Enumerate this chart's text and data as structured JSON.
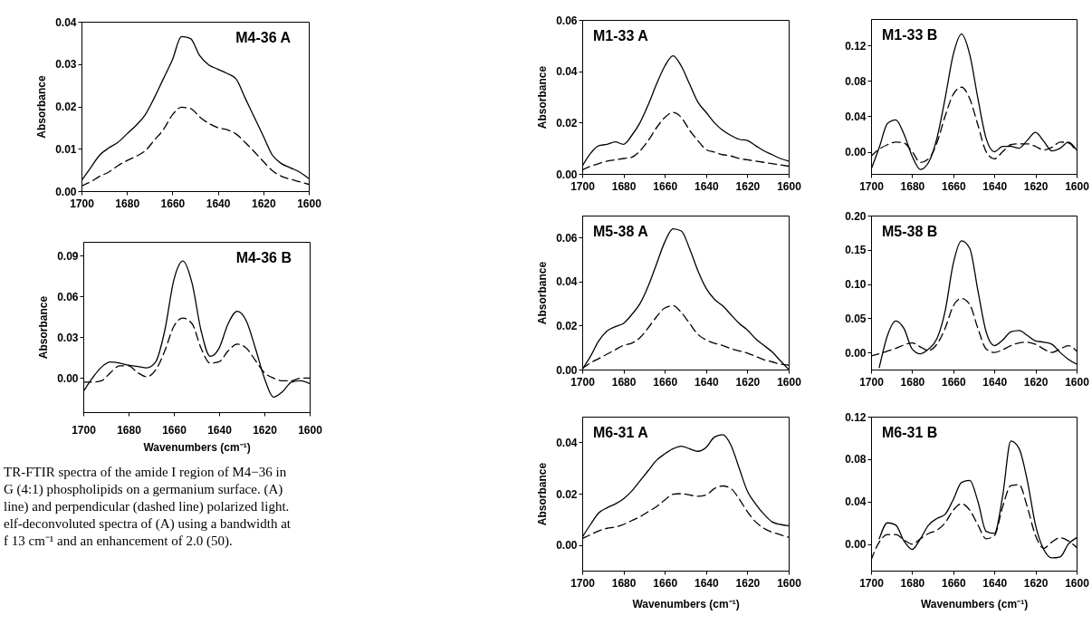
{
  "chart_data": [
    {
      "type": "line",
      "title": "M4-36 A",
      "ylabel": "Absorbance",
      "xlim": [
        1700,
        1600
      ],
      "xticks": [
        1700,
        1680,
        1660,
        1640,
        1620,
        1600
      ],
      "ylim": [
        0,
        0.04
      ],
      "yticks": [
        {
          "value": 0,
          "label": "0.00"
        },
        0.01,
        0.02,
        0.03,
        0.04
      ],
      "grid": false,
      "x": [
        1700,
        1696,
        1692,
        1688,
        1684,
        1680,
        1676,
        1672,
        1668,
        1664,
        1660,
        1656,
        1652,
        1648,
        1644,
        1640,
        1636,
        1632,
        1628,
        1624,
        1620,
        1616,
        1612,
        1608,
        1604,
        1600
      ],
      "series": [
        {
          "color": "#000000",
          "line_style": "solid",
          "values": [
            0.0025,
            0.0055,
            0.0085,
            0.0102,
            0.0115,
            0.0135,
            0.0155,
            0.018,
            0.022,
            0.0265,
            0.031,
            0.0365,
            0.036,
            0.032,
            0.0298,
            0.0288,
            0.0278,
            0.0265,
            0.022,
            0.0175,
            0.013,
            0.0085,
            0.0065,
            0.0055,
            0.0045,
            0.003
          ]
        },
        {
          "color": "#000000",
          "line_style": "dashed",
          "values": [
            0.0012,
            0.0022,
            0.0035,
            0.0045,
            0.006,
            0.0072,
            0.0082,
            0.0095,
            0.012,
            0.0145,
            0.018,
            0.0198,
            0.0195,
            0.0175,
            0.016,
            0.015,
            0.0145,
            0.0135,
            0.0115,
            0.0093,
            0.007,
            0.0048,
            0.0035,
            0.0028,
            0.0022,
            0.0016
          ]
        }
      ]
    },
    {
      "type": "line",
      "title": "M4-36 B",
      "ylabel": "Absorbance",
      "xlabel": "Wavenumbers (cm⁻¹)",
      "xlim": [
        1700,
        1600
      ],
      "xticks": [
        1700,
        1680,
        1660,
        1640,
        1620,
        1600
      ],
      "ylim": [
        -0.025,
        0.1
      ],
      "yticks": [
        {
          "value": 0,
          "label": "0.00"
        },
        0.03,
        0.06,
        0.09
      ],
      "grid": false,
      "annotations": [
        "TR-FTIR spectra of the amide I region of M4−36 in",
        "G (4:1) phospholipids on a germanium surface. (A)",
        "line) and perpendicular (dashed line) polarized light.",
        "elf-deconvoluted spectra of (A) using a bandwidth at",
        "f 13 cm⁻¹ and an enhancement of 2.0 (50)."
      ],
      "x": [
        1700,
        1696,
        1692,
        1688,
        1684,
        1680,
        1676,
        1672,
        1668,
        1664,
        1660,
        1656,
        1652,
        1648,
        1644,
        1640,
        1636,
        1632,
        1628,
        1624,
        1620,
        1616,
        1612,
        1608,
        1604,
        1600
      ],
      "series": [
        {
          "color": "#000000",
          "line_style": "solid",
          "values": [
            -0.01,
            0,
            0.008,
            0.0118,
            0.011,
            0.0095,
            0.0085,
            0.0075,
            0.012,
            0.035,
            0.072,
            0.086,
            0.07,
            0.035,
            0.016,
            0.022,
            0.04,
            0.049,
            0.042,
            0.022,
            0,
            -0.014,
            -0.01,
            -0.003,
            -0.002,
            -0.004
          ]
        },
        {
          "color": "#000000",
          "line_style": "dashed",
          "values": [
            -0.003,
            -0.003,
            -0.002,
            0.004,
            0.009,
            0.009,
            0.004,
            0.001,
            0.006,
            0.02,
            0.038,
            0.044,
            0.04,
            0.022,
            0.011,
            0.012,
            0.02,
            0.025,
            0.022,
            0.013,
            0.004,
            0,
            -0.002,
            -0.002,
            0,
            0
          ]
        }
      ]
    },
    {
      "type": "line",
      "title": "M1-33 A",
      "ylabel": "Absorbance",
      "xlim": [
        1700,
        1600
      ],
      "xticks": [
        1700,
        1680,
        1660,
        1640,
        1620,
        1600
      ],
      "ylim": [
        0,
        0.06
      ],
      "yticks": [
        {
          "value": 0,
          "label": "0.00"
        },
        0.02,
        0.04,
        0.06
      ],
      "grid": false,
      "x": [
        1700,
        1696,
        1692,
        1688,
        1684,
        1680,
        1676,
        1672,
        1668,
        1664,
        1660,
        1656,
        1652,
        1648,
        1644,
        1640,
        1636,
        1632,
        1628,
        1624,
        1620,
        1616,
        1612,
        1608,
        1604,
        1600
      ],
      "series": [
        {
          "color": "#000000",
          "line_style": "solid",
          "values": [
            0.003,
            0.008,
            0.011,
            0.0115,
            0.0125,
            0.0115,
            0.015,
            0.02,
            0.027,
            0.035,
            0.042,
            0.046,
            0.042,
            0.035,
            0.028,
            0.024,
            0.02,
            0.017,
            0.015,
            0.0135,
            0.013,
            0.011,
            0.009,
            0.0075,
            0.006,
            0.005
          ]
        },
        {
          "color": "#000000",
          "line_style": "dashed",
          "values": [
            0.0015,
            0.003,
            0.004,
            0.005,
            0.0055,
            0.006,
            0.0065,
            0.009,
            0.013,
            0.018,
            0.022,
            0.024,
            0.022,
            0.017,
            0.013,
            0.0095,
            0.0085,
            0.0075,
            0.007,
            0.006,
            0.0055,
            0.005,
            0.0045,
            0.004,
            0.0035,
            0.003
          ]
        }
      ]
    },
    {
      "type": "line",
      "title": "M5-38 A",
      "ylabel": "Absorbance",
      "xlim": [
        1700,
        1600
      ],
      "xticks": [
        1700,
        1680,
        1660,
        1640,
        1620,
        1600
      ],
      "ylim": [
        0,
        0.07
      ],
      "yticks": [
        {
          "value": 0,
          "label": "0.00"
        },
        0.02,
        0.04,
        0.06
      ],
      "grid": false,
      "x": [
        1700,
        1696,
        1692,
        1688,
        1684,
        1680,
        1676,
        1672,
        1668,
        1664,
        1660,
        1656,
        1652,
        1648,
        1644,
        1640,
        1636,
        1632,
        1628,
        1624,
        1620,
        1616,
        1612,
        1608,
        1604,
        1600
      ],
      "series": [
        {
          "color": "#000000",
          "line_style": "solid",
          "values": [
            0,
            0.006,
            0.013,
            0.0175,
            0.0195,
            0.021,
            0.025,
            0.03,
            0.038,
            0.048,
            0.058,
            0.064,
            0.063,
            0.055,
            0.045,
            0.037,
            0.032,
            0.029,
            0.025,
            0.021,
            0.018,
            0.014,
            0.011,
            0.008,
            0.004,
            0
          ]
        },
        {
          "color": "#000000",
          "line_style": "dashed",
          "values": [
            0.0005,
            0.003,
            0.005,
            0.007,
            0.009,
            0.011,
            0.012,
            0.0145,
            0.019,
            0.024,
            0.028,
            0.029,
            0.026,
            0.021,
            0.016,
            0.0135,
            0.012,
            0.011,
            0.0095,
            0.0085,
            0.0075,
            0.006,
            0.0045,
            0.0035,
            0.0025,
            0.002
          ]
        }
      ]
    },
    {
      "type": "line",
      "title": "M6-31 A",
      "ylabel": "Absorbance",
      "xlabel": "Wavenumbers (cm⁻¹)",
      "xlim": [
        1700,
        1600
      ],
      "xticks": [
        1700,
        1680,
        1660,
        1640,
        1620,
        1600
      ],
      "ylim": [
        -0.01,
        0.05
      ],
      "yticks": [
        {
          "value": 0,
          "label": "0.00"
        },
        0.02,
        0.04
      ],
      "grid": false,
      "x": [
        1700,
        1696,
        1692,
        1688,
        1684,
        1680,
        1676,
        1672,
        1668,
        1664,
        1660,
        1656,
        1652,
        1648,
        1644,
        1640,
        1636,
        1632,
        1628,
        1624,
        1620,
        1616,
        1612,
        1608,
        1604,
        1600
      ],
      "series": [
        {
          "color": "#000000",
          "line_style": "solid",
          "values": [
            0.003,
            0.008,
            0.0125,
            0.0145,
            0.016,
            0.018,
            0.021,
            0.025,
            0.029,
            0.033,
            0.0355,
            0.0375,
            0.0385,
            0.0375,
            0.0365,
            0.038,
            0.042,
            0.043,
            0.039,
            0.03,
            0.021,
            0.016,
            0.012,
            0.009,
            0.008,
            0.0075
          ]
        },
        {
          "color": "#000000",
          "line_style": "dashed",
          "values": [
            0.0025,
            0.004,
            0.0055,
            0.0065,
            0.007,
            0.008,
            0.0095,
            0.011,
            0.013,
            0.015,
            0.0175,
            0.0198,
            0.02,
            0.0195,
            0.019,
            0.0195,
            0.022,
            0.023,
            0.022,
            0.018,
            0.013,
            0.009,
            0.0065,
            0.005,
            0.004,
            0.003
          ]
        }
      ]
    },
    {
      "type": "line",
      "title": "M1-33 B",
      "xlim": [
        1700,
        1600
      ],
      "xticks": [
        1700,
        1680,
        1660,
        1640,
        1620,
        1600
      ],
      "ylim": [
        -0.025,
        0.15
      ],
      "yticks": [
        {
          "value": 0,
          "label": "0.00"
        },
        0.04,
        0.08,
        0.12
      ],
      "grid": false,
      "x": [
        1700,
        1696,
        1692,
        1688,
        1684,
        1680,
        1676,
        1672,
        1668,
        1664,
        1660,
        1656,
        1652,
        1648,
        1644,
        1640,
        1636,
        1632,
        1628,
        1624,
        1620,
        1616,
        1612,
        1608,
        1604,
        1600
      ],
      "series": [
        {
          "color": "#000000",
          "line_style": "solid",
          "values": [
            -0.02,
            0.005,
            0.032,
            0.036,
            0.02,
            -0.005,
            -0.02,
            -0.012,
            0.015,
            0.06,
            0.11,
            0.133,
            0.11,
            0.06,
            0.015,
            0,
            0.006,
            0.006,
            0.004,
            0.013,
            0.022,
            0.012,
            0.001,
            0.004,
            0.011,
            0.002
          ]
        },
        {
          "color": "#000000",
          "line_style": "dashed",
          "values": [
            -0.005,
            0.003,
            0.008,
            0.011,
            0.01,
            0,
            -0.012,
            -0.008,
            0.01,
            0.04,
            0.065,
            0.073,
            0.06,
            0.03,
            0,
            -0.008,
            0,
            0.008,
            0.009,
            0.009,
            0.006,
            0.002,
            0.005,
            0.011,
            0.01,
            0
          ]
        }
      ]
    },
    {
      "type": "line",
      "title": "M5-38 B",
      "xlim": [
        1700,
        1600
      ],
      "xticks": [
        1700,
        1680,
        1660,
        1640,
        1620,
        1600
      ],
      "ylim": [
        -0.025,
        0.2
      ],
      "yticks": [
        {
          "value": 0,
          "label": "0.00"
        },
        0.05,
        {
          "value": 0.1,
          "label": "0.10"
        },
        0.15,
        {
          "value": 0.2,
          "label": "0.20"
        }
      ],
      "grid": false,
      "x": [
        1700,
        1696,
        1692,
        1688,
        1684,
        1680,
        1676,
        1672,
        1668,
        1664,
        1660,
        1656,
        1652,
        1648,
        1644,
        1640,
        1636,
        1632,
        1628,
        1624,
        1620,
        1616,
        1612,
        1608,
        1604,
        1600
      ],
      "series": [
        {
          "color": "#000000",
          "line_style": "solid",
          "values": [
            null,
            -0.022,
            0.025,
            0.046,
            0.035,
            0.005,
            -0.002,
            0.005,
            0.02,
            0.06,
            0.13,
            0.163,
            0.152,
            0.09,
            0.03,
            0.01,
            0.018,
            0.03,
            0.032,
            0.025,
            0.017,
            0.015,
            0.012,
            0,
            -0.01,
            -0.017
          ]
        },
        {
          "color": "#000000",
          "line_style": "dashed",
          "values": [
            -0.005,
            -0.002,
            0.002,
            0.006,
            0.011,
            0.014,
            0.008,
            0.003,
            0.012,
            0.035,
            0.068,
            0.079,
            0.07,
            0.035,
            0.005,
            0,
            0.004,
            0.01,
            0.014,
            0.015,
            0.012,
            0.005,
            0,
            0.005,
            0.01,
            0.002
          ]
        }
      ]
    },
    {
      "type": "line",
      "title": "M6-31 B",
      "xlabel": "Wavenumbers (cm⁻¹)",
      "xlim": [
        1700,
        1600
      ],
      "xticks": [
        1700,
        1680,
        1660,
        1640,
        1620,
        1600
      ],
      "ylim": [
        -0.025,
        0.12
      ],
      "yticks": [
        {
          "value": 0,
          "label": "0.00"
        },
        0.04,
        0.08,
        0.12
      ],
      "grid": false,
      "x": [
        1700,
        1696,
        1692,
        1688,
        1684,
        1680,
        1676,
        1672,
        1668,
        1664,
        1660,
        1656,
        1652,
        1648,
        1644,
        1640,
        1636,
        1632,
        1628,
        1624,
        1620,
        1616,
        1612,
        1608,
        1604,
        1600
      ],
      "series": [
        {
          "color": "#000000",
          "line_style": "solid",
          "values": [
            null,
            0.005,
            0.02,
            0.018,
            0.003,
            -0.005,
            0.005,
            0.018,
            0.024,
            0.028,
            0.042,
            0.058,
            0.06,
            0.04,
            0.012,
            0.01,
            0.045,
            0.097,
            0.09,
            0.06,
            0.018,
            -0.005,
            -0.013,
            -0.012,
            0,
            0.006
          ]
        },
        {
          "color": "#000000",
          "line_style": "dashed",
          "values": [
            -0.015,
            0.002,
            0.009,
            0.009,
            0.004,
            0,
            0.005,
            0.01,
            0.013,
            0.02,
            0.032,
            0.038,
            0.032,
            0.018,
            0.005,
            0.008,
            0.035,
            0.055,
            0.056,
            0.035,
            0.008,
            -0.004,
            0.002,
            0.006,
            0.003,
            -0.003
          ]
        }
      ]
    }
  ]
}
